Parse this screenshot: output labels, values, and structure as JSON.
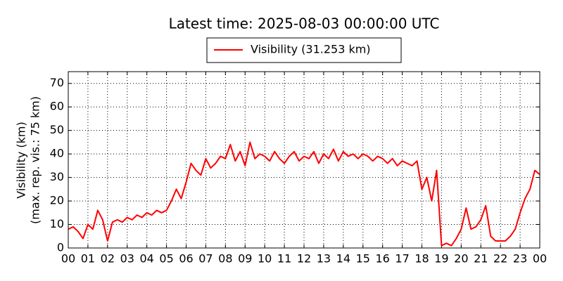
{
  "chart_data": {
    "type": "line",
    "title": "Latest time: 2025-08-03 00:00:00 UTC",
    "ylabel": [
      "Visibility (km)",
      "(max. rep. vis.: 75 km)"
    ],
    "x": [
      0,
      0.25,
      0.5,
      0.75,
      1,
      1.25,
      1.5,
      1.75,
      2,
      2.25,
      2.5,
      2.75,
      3,
      3.25,
      3.5,
      3.75,
      4,
      4.25,
      4.5,
      4.75,
      5,
      5.25,
      5.5,
      5.75,
      6,
      6.25,
      6.5,
      6.75,
      7,
      7.25,
      7.5,
      7.75,
      8,
      8.25,
      8.5,
      8.75,
      9,
      9.25,
      9.5,
      9.75,
      10,
      10.25,
      10.5,
      10.75,
      11,
      11.25,
      11.5,
      11.75,
      12,
      12.25,
      12.5,
      12.75,
      13,
      13.25,
      13.5,
      13.75,
      14,
      14.25,
      14.5,
      14.75,
      15,
      15.25,
      15.5,
      15.75,
      16,
      16.25,
      16.5,
      16.75,
      17,
      17.25,
      17.5,
      17.75,
      18,
      18.25,
      18.5,
      18.75,
      19,
      19.25,
      19.5,
      19.75,
      20,
      20.25,
      20.5,
      20.75,
      21,
      21.25,
      21.5,
      21.75,
      22,
      22.25,
      22.5,
      22.75,
      23,
      23.25,
      23.5,
      23.75,
      24
    ],
    "series": [
      {
        "name": "Visibility (31.253 km)",
        "color": "#ff0000",
        "values": [
          8,
          9,
          7,
          4,
          10,
          8,
          16,
          12,
          3,
          11,
          12,
          11,
          13,
          12,
          14,
          13,
          15,
          14,
          16,
          15,
          16,
          20,
          25,
          21,
          28,
          36,
          33,
          31,
          38,
          34,
          36,
          39,
          38,
          44,
          37,
          41,
          35,
          45,
          38,
          40,
          39,
          37,
          41,
          38,
          36,
          39,
          41,
          37,
          39,
          38,
          41,
          36,
          40,
          38,
          42,
          37,
          41,
          39,
          40,
          38,
          40,
          39,
          37,
          39,
          38,
          36,
          38,
          35,
          37,
          36,
          35,
          37,
          25,
          30,
          20,
          33,
          1,
          2,
          1,
          4,
          8,
          17,
          8,
          9,
          12,
          18,
          5,
          3,
          3,
          3,
          5,
          8,
          15,
          21,
          25,
          33,
          31.253
        ]
      }
    ],
    "xlim": [
      0,
      24
    ],
    "xticks": [
      {
        "value": 0,
        "label": "00"
      },
      {
        "value": 1,
        "label": "01"
      },
      {
        "value": 2,
        "label": "02"
      },
      {
        "value": 3,
        "label": "03"
      },
      {
        "value": 4,
        "label": "04"
      },
      {
        "value": 5,
        "label": "05"
      },
      {
        "value": 6,
        "label": "06"
      },
      {
        "value": 7,
        "label": "07"
      },
      {
        "value": 8,
        "label": "08"
      },
      {
        "value": 9,
        "label": "09"
      },
      {
        "value": 10,
        "label": "10"
      },
      {
        "value": 11,
        "label": "11"
      },
      {
        "value": 12,
        "label": "12"
      },
      {
        "value": 13,
        "label": "13"
      },
      {
        "value": 14,
        "label": "14"
      },
      {
        "value": 15,
        "label": "15"
      },
      {
        "value": 16,
        "label": "16"
      },
      {
        "value": 17,
        "label": "17"
      },
      {
        "value": 18,
        "label": "18"
      },
      {
        "value": 19,
        "label": "19"
      },
      {
        "value": 20,
        "label": "20"
      },
      {
        "value": 21,
        "label": "21"
      },
      {
        "value": 22,
        "label": "22"
      },
      {
        "value": 23,
        "label": "23"
      },
      {
        "value": 24,
        "label": "00"
      }
    ],
    "ylim": [
      0,
      75
    ],
    "yticks": [
      0,
      10,
      20,
      30,
      40,
      50,
      60,
      70
    ],
    "grid": true
  }
}
